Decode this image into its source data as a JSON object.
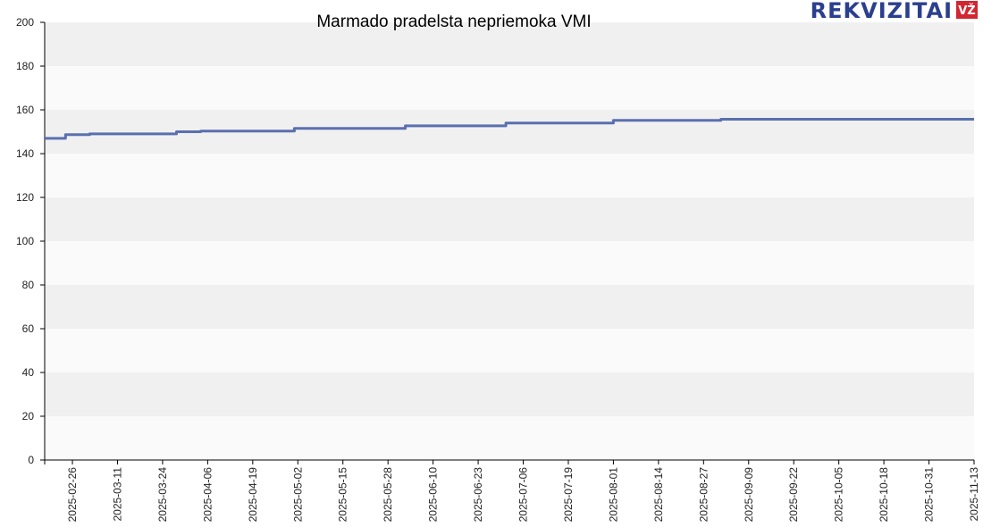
{
  "logo": {
    "text": "REKVIZITAI",
    "badge": "VŽ"
  },
  "colors": {
    "line": "#5a6fb0",
    "band_light": "#fafafa",
    "band_dark": "#f0f0f0",
    "badge": "#d22630"
  },
  "chart_data": {
    "type": "line",
    "title": "Marmado pradelsta nepriemoka VMI",
    "xlabel": "",
    "ylabel": "",
    "ylim": [
      0,
      200
    ],
    "yticks": [
      0,
      20,
      40,
      60,
      80,
      100,
      120,
      140,
      160,
      180,
      200
    ],
    "xticks": [
      "2025-02-26",
      "2025-03-11",
      "2025-03-24",
      "2025-04-06",
      "2025-04-19",
      "2025-05-02",
      "2025-05-15",
      "2025-05-28",
      "2025-06-10",
      "2025-06-23",
      "2025-07-06",
      "2025-07-19",
      "2025-08-01",
      "2025-08-14",
      "2025-08-27",
      "2025-09-09",
      "2025-09-22",
      "2025-10-05",
      "2025-10-18",
      "2025-10-31",
      "2025-11-13"
    ],
    "x_range": [
      "2025-02-18",
      "2025-11-13"
    ],
    "grid": "alternating horizontal bands",
    "series": [
      {
        "x": [
          "2025-02-18",
          "2025-02-24",
          "2025-02-24",
          "2025-03-03",
          "2025-03-03",
          "2025-03-28",
          "2025-03-28",
          "2025-04-04",
          "2025-04-04",
          "2025-05-01",
          "2025-05-01",
          "2025-06-02",
          "2025-06-02",
          "2025-07-01",
          "2025-07-01",
          "2025-08-01",
          "2025-08-01",
          "2025-09-01",
          "2025-09-01",
          "2025-11-13"
        ],
        "y": [
          147,
          147,
          148.7,
          148.7,
          149,
          149,
          150,
          150,
          150.3,
          150.3,
          151.5,
          151.5,
          152.7,
          152.7,
          154,
          154,
          155.2,
          155.2,
          155.7,
          155.7
        ]
      }
    ]
  }
}
